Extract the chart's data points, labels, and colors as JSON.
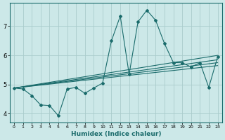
{
  "xlabel": "Humidex (Indice chaleur)",
  "ylabel": "",
  "background_color": "#cce8e8",
  "grid_color": "#aacccc",
  "line_color": "#1a6b6b",
  "xlim": [
    -0.5,
    23.5
  ],
  "ylim": [
    3.7,
    7.8
  ],
  "xticks": [
    0,
    1,
    2,
    3,
    4,
    5,
    6,
    7,
    8,
    9,
    10,
    11,
    12,
    13,
    14,
    15,
    16,
    17,
    18,
    19,
    20,
    21,
    22,
    23
  ],
  "yticks": [
    4,
    5,
    6,
    7
  ],
  "line1_x": [
    0,
    1,
    2,
    3,
    4,
    5,
    6,
    7,
    8,
    9,
    10,
    11,
    12,
    13,
    14,
    15,
    16,
    17,
    18,
    19,
    20,
    21,
    22,
    23
  ],
  "line1_y": [
    4.88,
    4.85,
    4.62,
    4.3,
    4.28,
    3.93,
    4.85,
    4.9,
    4.7,
    4.88,
    5.05,
    6.5,
    7.35,
    5.35,
    7.15,
    7.55,
    7.2,
    6.4,
    5.75,
    5.75,
    5.6,
    5.75,
    4.9,
    5.95
  ],
  "line2_x": [
    0,
    23
  ],
  "line2_y": [
    4.88,
    6.0
  ],
  "line3_x": [
    0,
    23
  ],
  "line3_y": [
    4.88,
    5.85
  ],
  "line4_x": [
    0,
    23
  ],
  "line4_y": [
    4.88,
    5.75
  ],
  "line5_x": [
    0,
    23
  ],
  "line5_y": [
    4.88,
    5.65
  ]
}
